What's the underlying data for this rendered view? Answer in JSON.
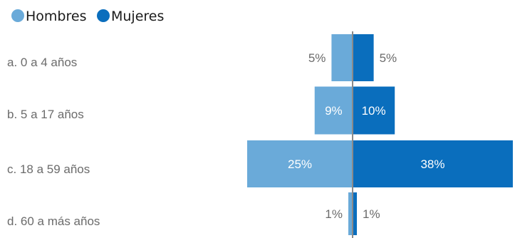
{
  "chart_data": {
    "type": "bar",
    "orientation": "horizontal-butterfly",
    "categories": [
      "a. 0 a 4 años",
      "b. 5 a 17 años",
      "c. 18 a 59 años",
      "d. 60 a más años"
    ],
    "series": [
      {
        "name": "Hombres",
        "values": [
          5,
          9,
          25,
          1
        ],
        "labels": [
          "5%",
          "9%",
          "25%",
          "1%"
        ],
        "color": "#6aaad9",
        "side": "left"
      },
      {
        "name": "Mujeres",
        "values": [
          5,
          10,
          38,
          1
        ],
        "labels": [
          "5%",
          "10%",
          "38%",
          "1%"
        ],
        "color": "#0a6ebd",
        "side": "right"
      }
    ],
    "value_unit": "%",
    "legend_position": "top-left",
    "grid": false,
    "axis_line_color": "#8a8a8a"
  }
}
